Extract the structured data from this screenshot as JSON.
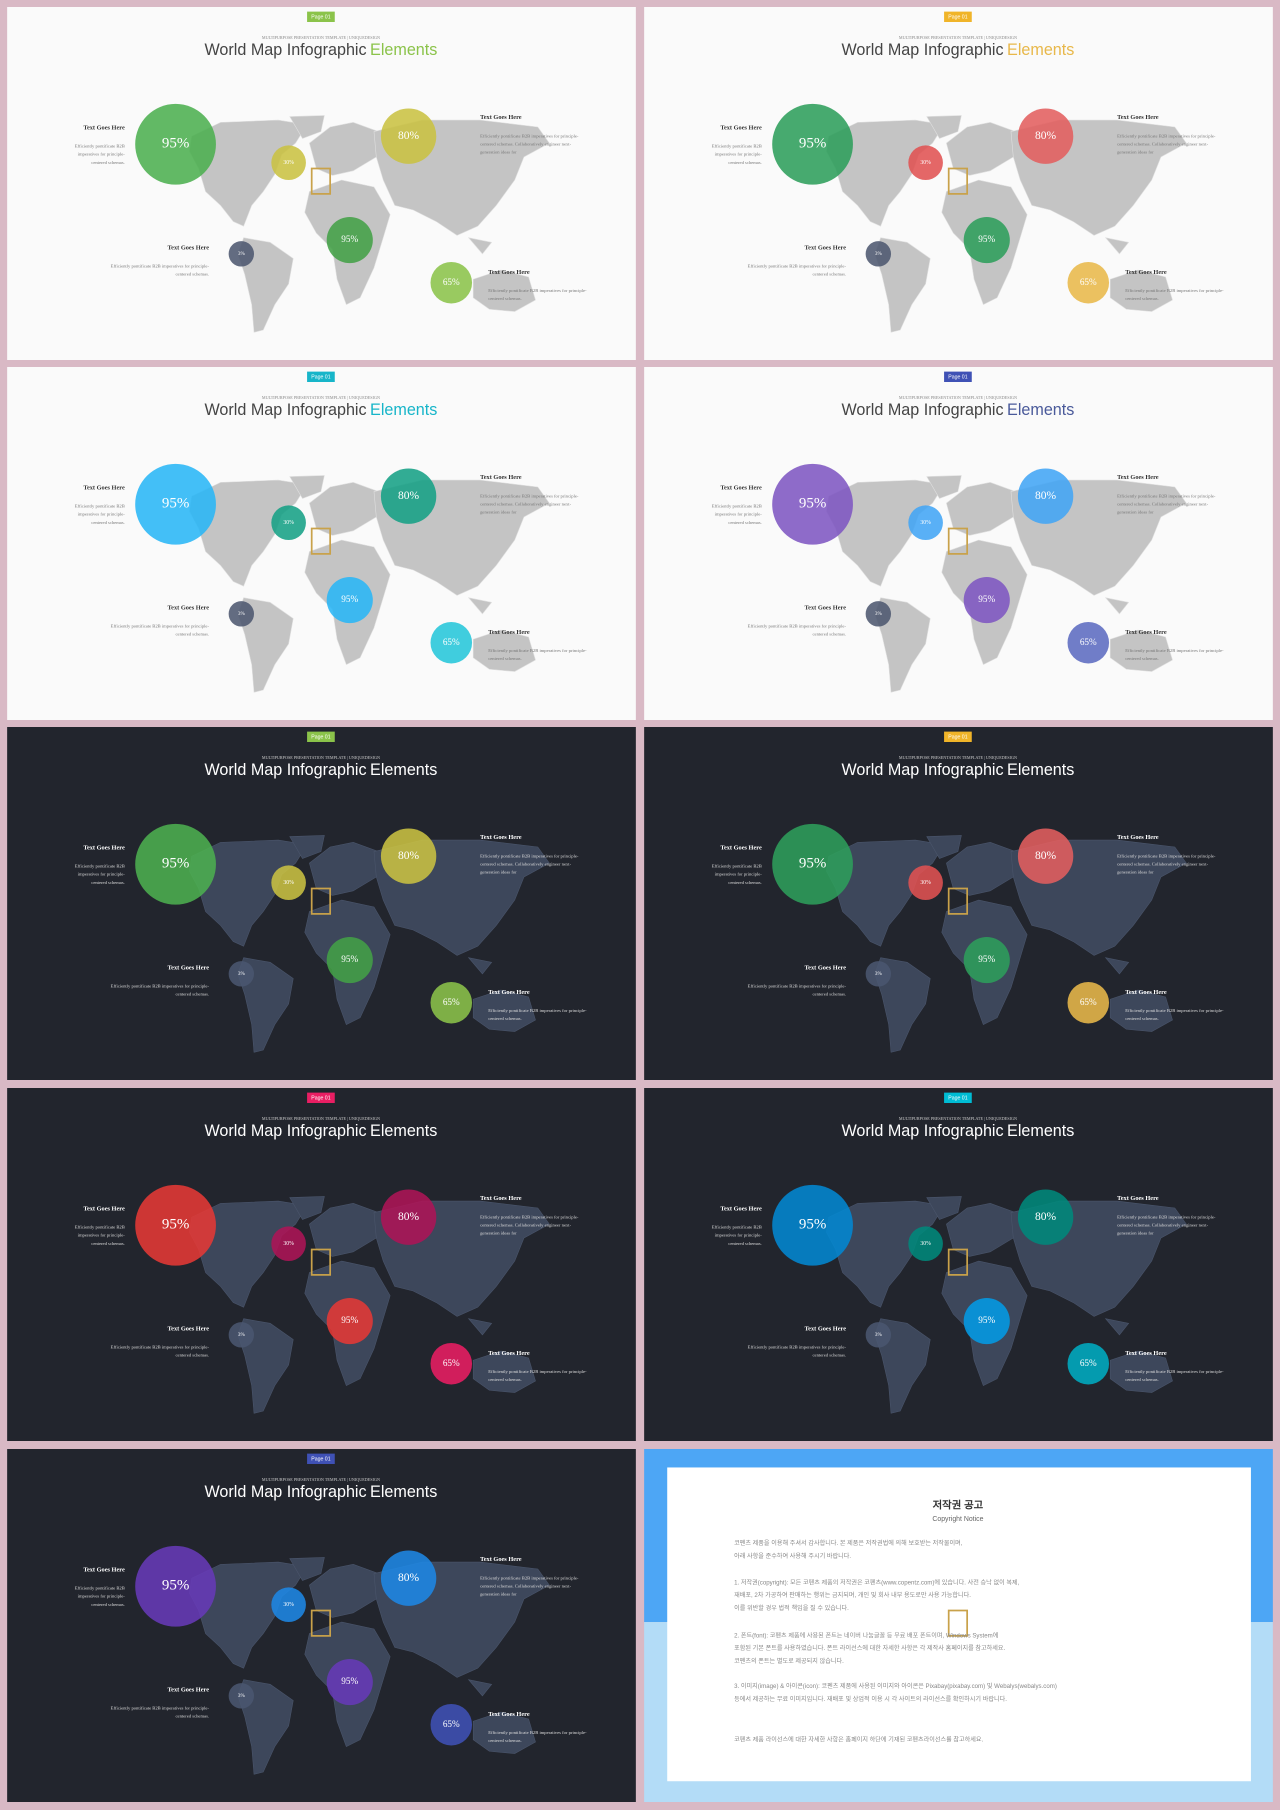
{
  "template": {
    "page_tag": "Page 01",
    "subtitle": "MULTIPURPOSE PRESENTATION TEMPLATE | UNIQUEDESIGN",
    "title": "World Map Infographic",
    "title_accent": "Elements",
    "bubbles": [
      "95%",
      "30%",
      "80%",
      "95%",
      "3%",
      "65%"
    ],
    "text_blocks": [
      {
        "heading": "Text Goes Here",
        "lines": [
          "Efficiently pontificate B2B",
          "imperatives for principle-",
          "centered schemas."
        ]
      },
      {
        "heading": "Text Goes Here",
        "lines": [
          "Efficiently pontificate B2B imperatives for principle-",
          "centered schemas. Collaboratively engineer next-",
          "generation ideas for"
        ]
      },
      {
        "heading": "Text Goes Here",
        "lines": [
          "Efficiently pontificate B2B imperatives for principle-",
          "centered schemas."
        ]
      },
      {
        "heading": "Text Goes Here",
        "lines": [
          "Efficiently pontificate B2B imperatives for principle-",
          "centered schemas."
        ]
      }
    ]
  },
  "slides": [
    {
      "theme": "light",
      "tag_color": "#8bc34a",
      "accent_color": "#8bc34a",
      "bubble_colors": [
        "#4caf50",
        "#c9c142",
        "#c9c142",
        "#43a047",
        "#4d5870",
        "#8bc34a"
      ]
    },
    {
      "theme": "light",
      "tag_color": "#f0b429",
      "accent_color": "#e8b84a",
      "bubble_colors": [
        "#2e9e5b",
        "#e05252",
        "#e35f5f",
        "#2e9e5b",
        "#4d5870",
        "#e8b84a"
      ]
    },
    {
      "theme": "light",
      "tag_color": "#17b5c9",
      "accent_color": "#17b5c9",
      "bubble_colors": [
        "#29b6f6",
        "#16a085",
        "#16a085",
        "#29b6f6",
        "#4d5870",
        "#26c6da"
      ]
    },
    {
      "theme": "light",
      "tag_color": "#3f51b5",
      "accent_color": "#4a5a9a",
      "bubble_colors": [
        "#7e57c2",
        "#42a5f5",
        "#42a5f5",
        "#7e57c2",
        "#4d5870",
        "#5c6bc0"
      ]
    },
    {
      "theme": "dark",
      "tag_color": "#8bc34a",
      "accent_color": "#ffffff",
      "bubble_colors": [
        "#4caf50",
        "#c9c142",
        "#c9c142",
        "#43a047",
        "#4a5670",
        "#8bc34a"
      ]
    },
    {
      "theme": "dark",
      "tag_color": "#f0b429",
      "accent_color": "#ffffff",
      "bubble_colors": [
        "#2e9e5b",
        "#e05252",
        "#e35f5f",
        "#2e9e5b",
        "#4a5670",
        "#e8b84a"
      ]
    },
    {
      "theme": "dark",
      "tag_color": "#e91e63",
      "accent_color": "#ffffff",
      "bubble_colors": [
        "#e53935",
        "#ad1457",
        "#ad1457",
        "#e53935",
        "#4a5670",
        "#e91e63"
      ]
    },
    {
      "theme": "dark",
      "tag_color": "#00bcd4",
      "accent_color": "#ffffff",
      "bubble_colors": [
        "#0288d1",
        "#00897b",
        "#00897b",
        "#039be5",
        "#4a5670",
        "#00acc1"
      ]
    },
    {
      "theme": "dark",
      "tag_color": "#3f51b5",
      "accent_color": "#ffffff",
      "bubble_colors": [
        "#673ab7",
        "#1e88e5",
        "#1e88e5",
        "#673ab7",
        "#4a5670",
        "#3f51b5"
      ]
    }
  ],
  "copyright": {
    "title": "저작권 공고",
    "subtitle": "Copyright Notice",
    "paragraphs": [
      [
        "코펜츠 제품을 이용해 주셔서 감사합니다. 본 제품은 저작권법에 의해 보호받는 저작물이며,",
        "아래 사항을 준수하여 사용해 주시기 바랍니다."
      ],
      [
        "1. 저작권(copyright): 모든 코펜츠 제품의 저작권은 코펜츠(www.copentz.com)에 있습니다. 사전 승낙 없이 복제,",
        "재배포, 2차 가공하여 판매하는 행위는 금지되며, 개인 및 회사 내부 용도로만 사용 가능합니다.",
        "이를 위반할 경우 법적 책임을 질 수 있습니다."
      ],
      [
        "2. 폰트(font): 코펜츠 제품에 사용된 폰트는 네이버 나눔글꼴 등 무료 배포 폰트이며, Windows System에",
        "포함된 기본 폰트를 사용하였습니다. 폰트 라이선스에 대한 자세한 사항은 각 제작사 홈페이지를 참고하세요.",
        "코펜츠의 폰트는 별도로 제공되지 않습니다."
      ],
      [
        "3. 이미지(image) & 아이콘(icon): 코펜츠 제품에 사용된 이미지와 아이콘은 Pixabay(pixabay.com) 및 Webalys(webalys.com)",
        "등에서 제공하는 무료 이미지입니다. 재배포 및 상업적 이용 시 각 사이트의 라이선스를 확인하시기 바랍니다."
      ],
      [
        "코펜츠 제품 라이선스에 대한 자세한 사항은 홈페이지 하단에 기재된 코펜츠라이선스를 참고하세요."
      ]
    ]
  }
}
